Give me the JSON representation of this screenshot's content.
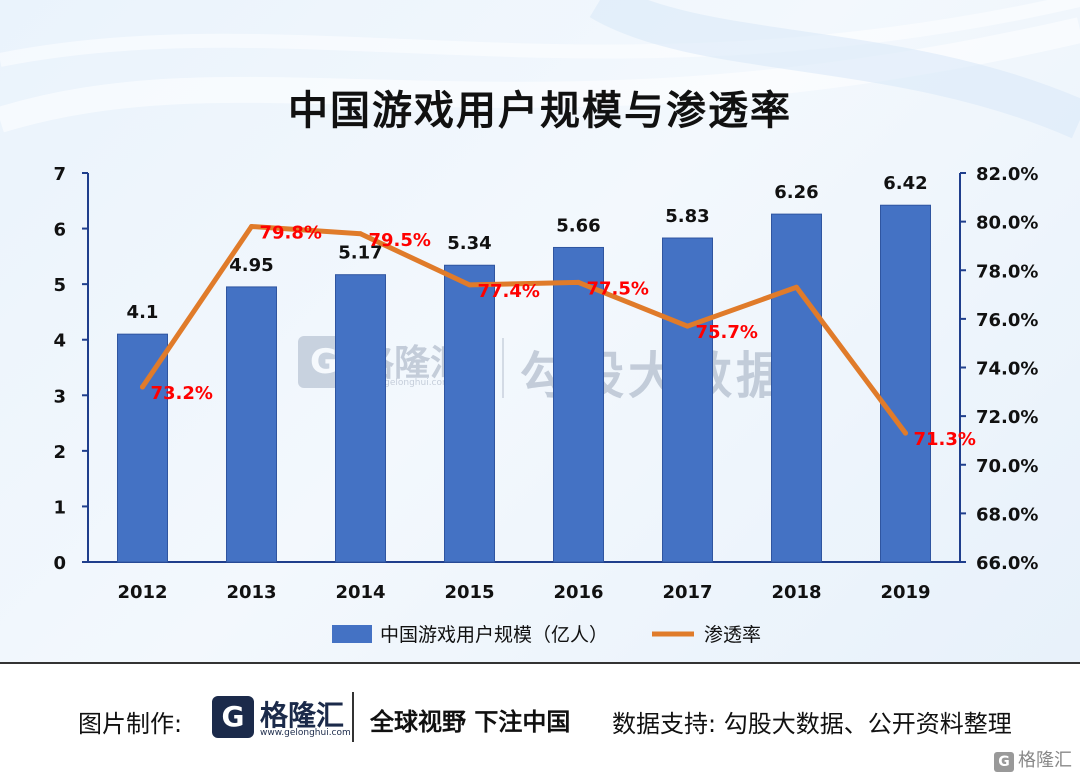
{
  "chart_data": {
    "type": "bar",
    "title": "中国游戏用户规模与渗透率",
    "categories": [
      "2012",
      "2013",
      "2014",
      "2015",
      "2016",
      "2017",
      "2018",
      "2019"
    ],
    "series": [
      {
        "name": "中国游戏用户规模（亿人）",
        "type": "bar",
        "axis": "left",
        "values": [
          4.1,
          4.95,
          5.17,
          5.34,
          5.66,
          5.83,
          6.26,
          6.42
        ],
        "labels": [
          "4.1",
          "4.95",
          "5.17",
          "5.34",
          "5.66",
          "5.83",
          "6.26",
          "6.42"
        ]
      },
      {
        "name": "渗透率",
        "type": "line",
        "axis": "right",
        "values": [
          73.2,
          79.8,
          79.5,
          77.4,
          77.5,
          75.7,
          77.3,
          71.3
        ],
        "labels": [
          "73.2%",
          "79.8%",
          "79.5%",
          "77.4%",
          "77.5%",
          "75.7%",
          "",
          "71.3%"
        ]
      }
    ],
    "y_left": {
      "min": 0,
      "max": 7,
      "ticks": [
        "0",
        "1",
        "2",
        "3",
        "4",
        "5",
        "6",
        "7"
      ]
    },
    "y_right": {
      "min": 66,
      "max": 82,
      "ticks": [
        "66.0%",
        "68.0%",
        "70.0%",
        "72.0%",
        "74.0%",
        "76.0%",
        "78.0%",
        "80.0%",
        "82.0%"
      ]
    },
    "legend_position": "bottom",
    "grid": false,
    "colors": {
      "bar": "#4472c4",
      "bar_edge": "#2f55a0",
      "line": "#e07b2a",
      "line_label": "#ff0000",
      "axis": "#1f3e8c"
    }
  },
  "watermark": {
    "logo_letter": "G",
    "brand": "格隆汇",
    "url": "www.gelonghui.com",
    "product": "勾股大数据"
  },
  "footer": {
    "made_by_label": "图片制作:",
    "logo_letter": "G",
    "logo_text": "格隆汇",
    "logo_url": "www.gelonghui.com",
    "slogan": "全球视野 下注中国",
    "source": "数据支持:  勾股大数据、公开资料整理"
  },
  "corner_mark": {
    "letter": "G",
    "text": "格隆汇"
  }
}
